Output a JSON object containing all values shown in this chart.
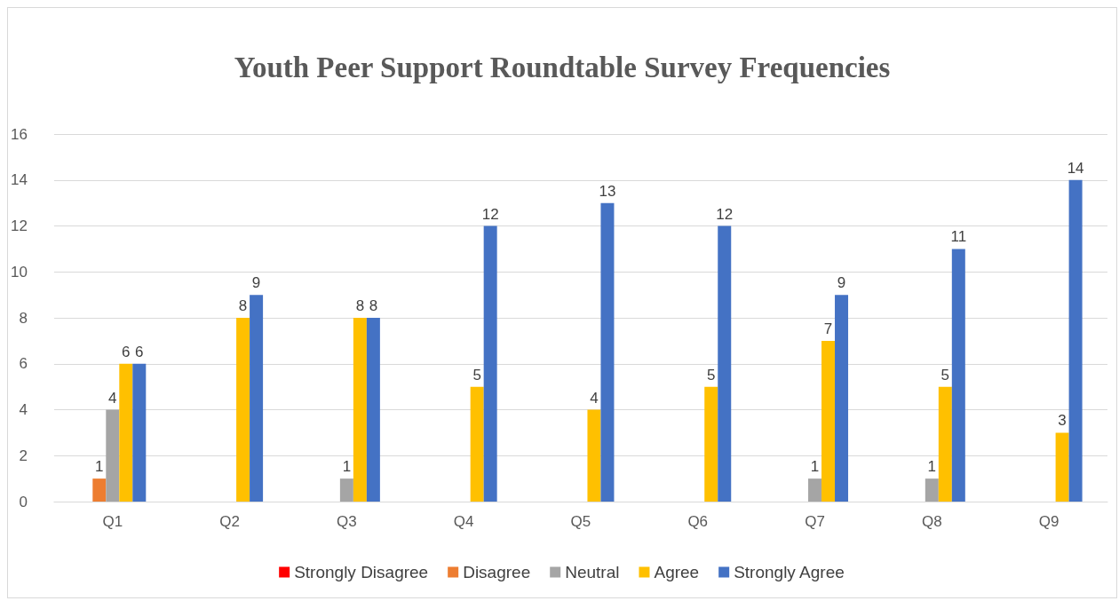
{
  "chart_data": {
    "type": "bar",
    "title": "Youth Peer Support Roundtable Survey Frequencies",
    "categories": [
      "Q1",
      "Q2",
      "Q3",
      "Q4",
      "Q5",
      "Q6",
      "Q7",
      "Q8",
      "Q9"
    ],
    "series": [
      {
        "name": "Strongly Disagree",
        "color": "#ff0000",
        "values": [
          0,
          0,
          0,
          0,
          0,
          0,
          0,
          0,
          0
        ],
        "value_labels": [
          null,
          null,
          null,
          null,
          null,
          null,
          null,
          null,
          null
        ]
      },
      {
        "name": "Disagree",
        "color": "#ed7d31",
        "values": [
          1,
          0,
          0,
          0,
          0,
          0,
          0,
          0,
          0
        ],
        "value_labels": [
          "1",
          null,
          null,
          null,
          null,
          null,
          null,
          null,
          null
        ]
      },
      {
        "name": "Neutral",
        "color": "#a5a5a5",
        "values": [
          4,
          0,
          1,
          0,
          0,
          0,
          1,
          1,
          0
        ],
        "value_labels": [
          "4",
          null,
          "1",
          null,
          null,
          null,
          "1",
          "1",
          null
        ]
      },
      {
        "name": "Agree",
        "color": "#ffc000",
        "values": [
          6,
          8,
          8,
          5,
          4,
          5,
          7,
          5,
          3
        ],
        "value_labels": [
          "6",
          "8",
          "8",
          "5",
          "4",
          "5",
          "7",
          "5",
          "3"
        ]
      },
      {
        "name": "Strongly Agree",
        "color": "#4472c4",
        "values": [
          6,
          9,
          8,
          12,
          13,
          12,
          9,
          11,
          14
        ],
        "value_labels": [
          "6",
          "9",
          "8",
          "12",
          "13",
          "12",
          "9",
          "11",
          "14"
        ]
      }
    ],
    "ylim": [
      0,
      16
    ],
    "yticks": [
      0,
      2,
      4,
      6,
      8,
      10,
      12,
      14,
      16
    ],
    "grid": "y",
    "legend": "bottom"
  }
}
